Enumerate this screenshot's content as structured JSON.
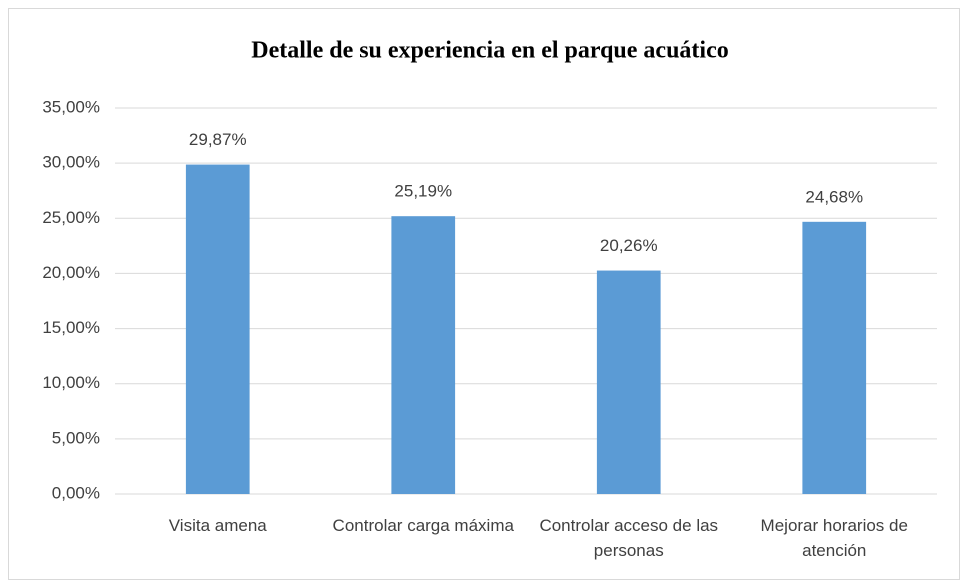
{
  "chart_data": {
    "type": "bar",
    "title": "Detalle de su experiencia en el parque acuático",
    "categories": [
      "Visita amena",
      "Controlar carga máxima",
      "Controlar acceso de las personas",
      "Mejorar horarios de atención"
    ],
    "values": [
      29.87,
      25.19,
      20.26,
      24.68
    ],
    "value_labels": [
      "29,87%",
      "25,19%",
      "20,26%",
      "24,68%"
    ],
    "color": "#5b9bd5",
    "ylim": [
      0,
      35
    ],
    "yticks": [
      {
        "value": 0,
        "label": "0,00%"
      },
      {
        "value": 5,
        "label": "5,00%"
      },
      {
        "value": 10,
        "label": "10,00%"
      },
      {
        "value": 15,
        "label": "15,00%"
      },
      {
        "value": 20,
        "label": "20,00%"
      },
      {
        "value": 25,
        "label": "25,00%"
      },
      {
        "value": 30,
        "label": "30,00%"
      },
      {
        "value": 35,
        "label": "35,00%"
      }
    ],
    "grid": true
  }
}
